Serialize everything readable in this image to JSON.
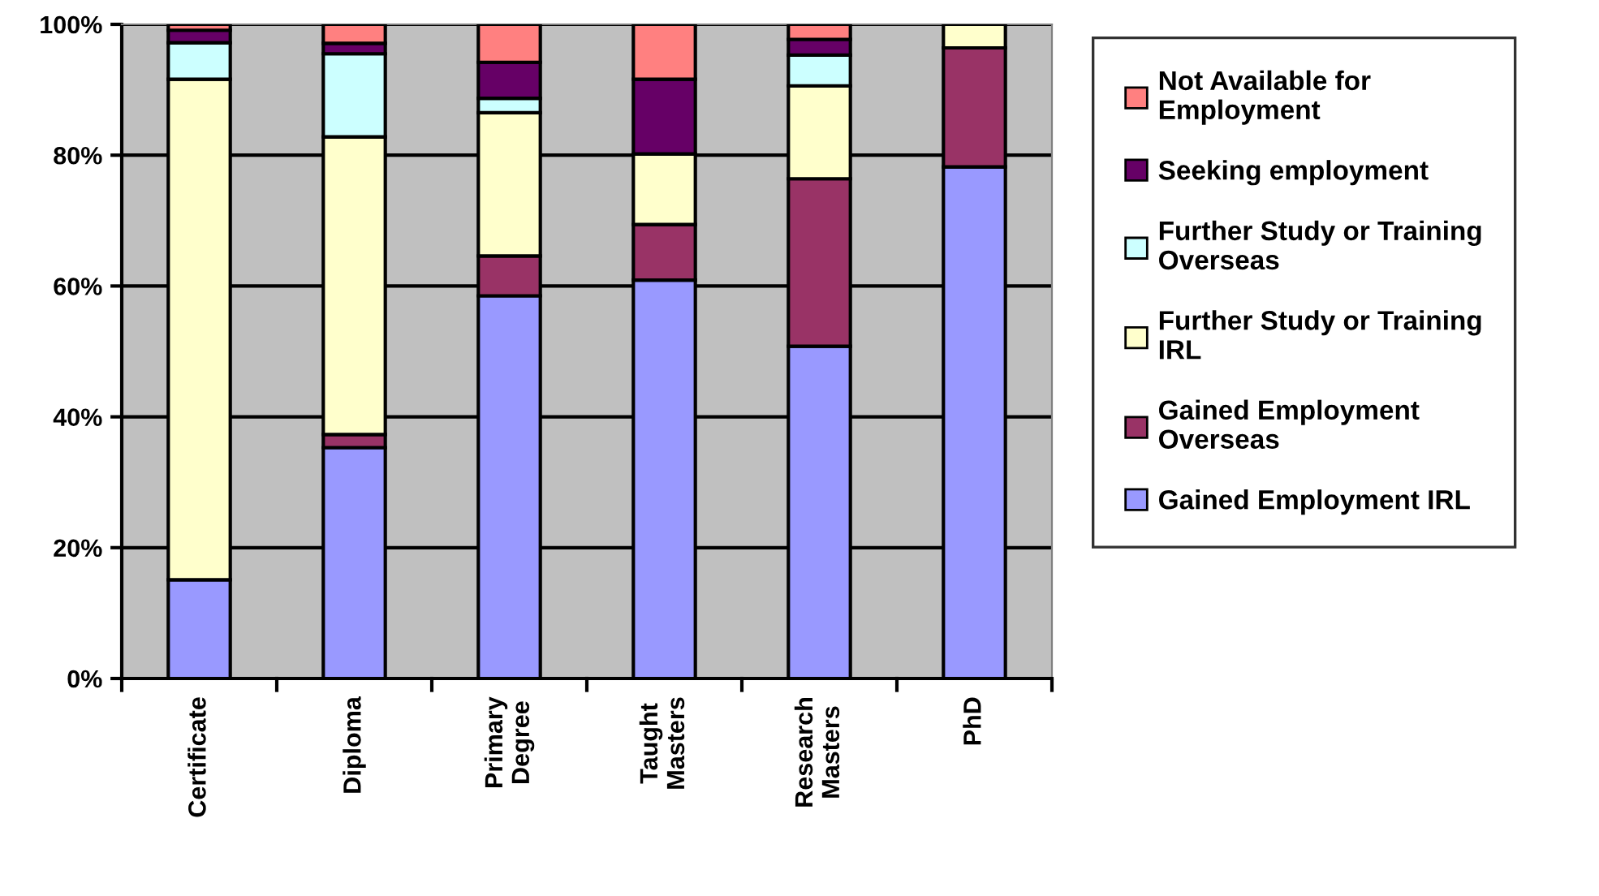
{
  "chart_data": {
    "type": "bar",
    "stacked": true,
    "categories": [
      "Certificate",
      "Diploma",
      "Primary\nDegree",
      "Taught\nMasters",
      "Research\nMasters",
      "PhD"
    ],
    "series": [
      {
        "name": "Gained Employment IRL",
        "color": "#9999ff",
        "values": [
          15.1,
          35.3,
          58.5,
          60.9,
          50.8,
          78.2
        ]
      },
      {
        "name": "Gained Employment\nOverseas",
        "color": "#993366",
        "values": [
          null,
          2,
          6.1,
          8.5,
          25.6,
          18.2
        ]
      },
      {
        "name": "Further Study or Training\nIRL",
        "color": "#ffffcc",
        "values": [
          76.5,
          45.5,
          21.9,
          10.8,
          14.2,
          3.6
        ]
      },
      {
        "name": "Further Study or Training\nOverseas",
        "color": "#ccffff",
        "values": [
          5.6,
          12.7,
          2.2,
          null,
          4.7,
          null
        ]
      },
      {
        "name": "Seeking employment",
        "color": "#660066",
        "values": [
          1.9,
          1.6,
          5.5,
          11.4,
          2.4,
          null
        ]
      },
      {
        "name": "Not Available for\nEmployment",
        "color": "#ff8080",
        "values": [
          0.9,
          2.9,
          5.8,
          8.4,
          2.3,
          null
        ]
      }
    ],
    "ylim": [
      0,
      100
    ],
    "yticks": [
      {
        "value": 0,
        "label": "0%"
      },
      {
        "value": 20,
        "label": "20%"
      },
      {
        "value": 40,
        "label": "40%"
      },
      {
        "value": 60,
        "label": "60%"
      },
      {
        "value": 80,
        "label": "80%"
      },
      {
        "value": 100,
        "label": "100%"
      }
    ],
    "grid": "y",
    "legend": "right"
  }
}
